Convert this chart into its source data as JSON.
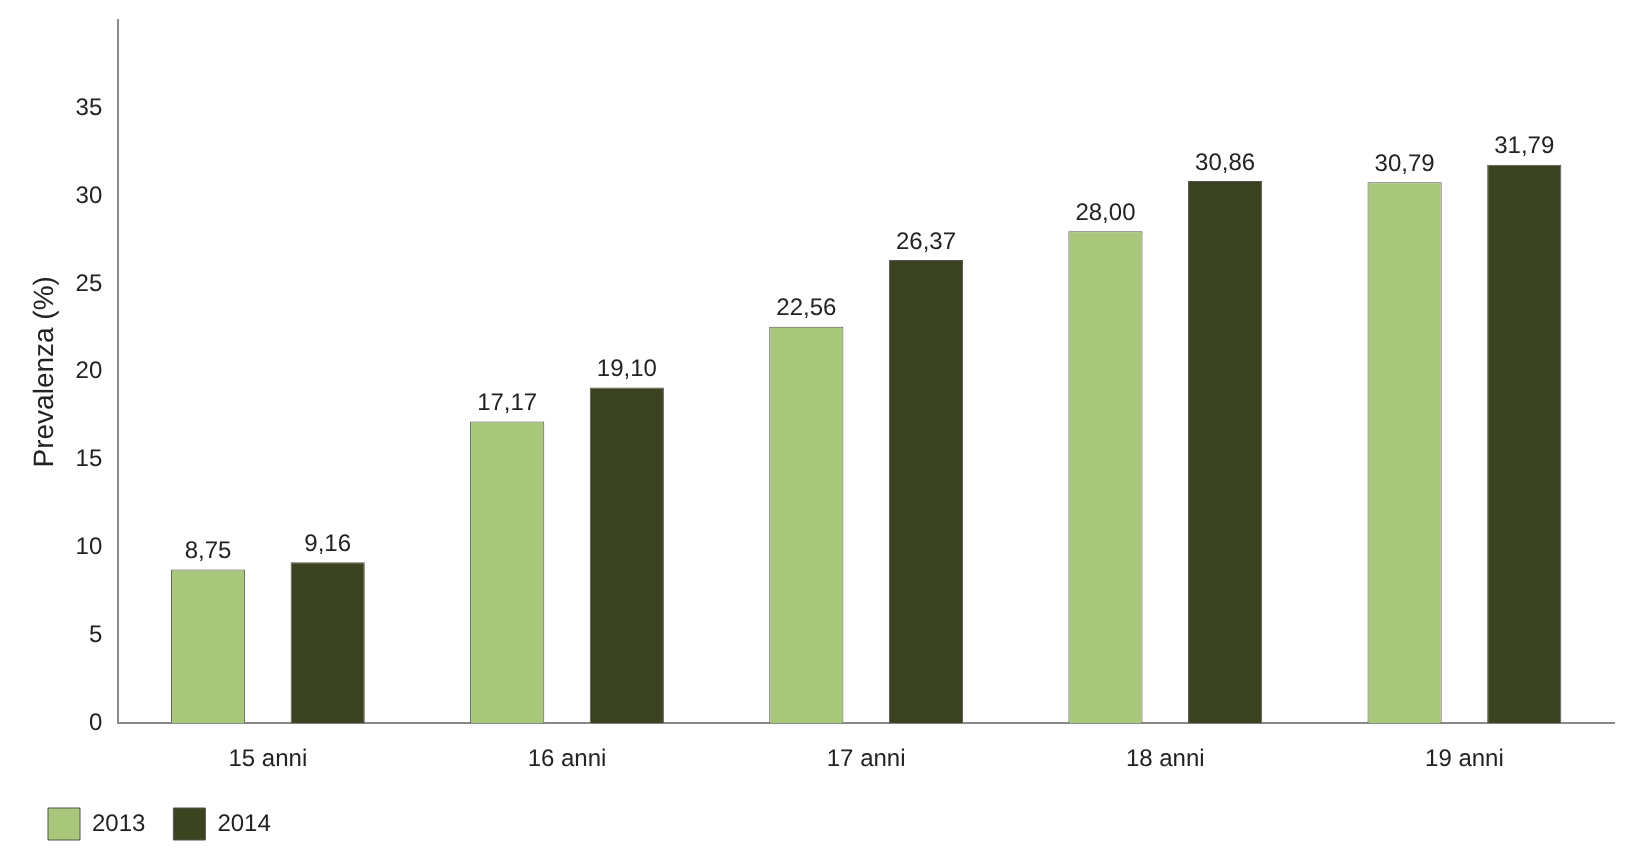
{
  "chart_data": {
    "type": "bar",
    "ylabel": "Prevalenza (%)",
    "categories": [
      "15 anni",
      "16 anni",
      "17 anni",
      "18 anni",
      "19 anni"
    ],
    "series": [
      {
        "name": "2013",
        "color": "#a9c77a",
        "values": [
          8.75,
          17.17,
          22.56,
          28.0,
          30.79
        ],
        "value_labels": [
          "8,75",
          "17,17",
          "22,56",
          "28,00",
          "30,79"
        ]
      },
      {
        "name": "2014",
        "color": "#3a4220",
        "values": [
          9.16,
          19.1,
          26.37,
          30.86,
          31.79
        ],
        "value_labels": [
          "9,16",
          "19,10",
          "26,37",
          "30,86",
          "31,79"
        ]
      }
    ],
    "ylim": [
      0,
      40
    ],
    "yticks": [
      0,
      5,
      10,
      15,
      20,
      25,
      30,
      35
    ],
    "grid": false,
    "legend": "bottom left"
  }
}
